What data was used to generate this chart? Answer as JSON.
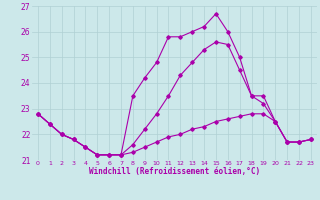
{
  "xlabel": "Windchill (Refroidissement éolien,°C)",
  "hours": [
    0,
    1,
    2,
    3,
    4,
    5,
    6,
    7,
    8,
    9,
    10,
    11,
    12,
    13,
    14,
    15,
    16,
    17,
    18,
    19,
    20,
    21,
    22,
    23
  ],
  "line_upper": [
    22.8,
    22.4,
    22.0,
    21.8,
    21.5,
    21.2,
    21.2,
    21.2,
    23.5,
    24.2,
    24.8,
    25.8,
    25.8,
    26.0,
    26.2,
    26.7,
    26.0,
    25.0,
    23.5,
    23.5,
    22.5,
    21.7,
    21.7,
    21.8
  ],
  "line_mid": [
    22.8,
    22.4,
    22.0,
    21.8,
    21.5,
    21.2,
    21.2,
    21.2,
    21.6,
    22.2,
    22.8,
    23.5,
    24.3,
    24.8,
    25.3,
    25.6,
    25.5,
    24.5,
    23.5,
    23.2,
    22.5,
    21.7,
    21.7,
    21.8
  ],
  "line_lower": [
    22.8,
    22.4,
    22.0,
    21.8,
    21.5,
    21.2,
    21.2,
    21.2,
    21.3,
    21.5,
    21.7,
    21.9,
    22.0,
    22.2,
    22.3,
    22.5,
    22.6,
    22.7,
    22.8,
    22.8,
    22.5,
    21.7,
    21.7,
    21.8
  ],
  "ylim": [
    21.0,
    27.0
  ],
  "xlim": [
    -0.5,
    23.5
  ],
  "bg_color": "#cce8ea",
  "line_color": "#aa00aa",
  "grid_color": "#b0d0d4"
}
